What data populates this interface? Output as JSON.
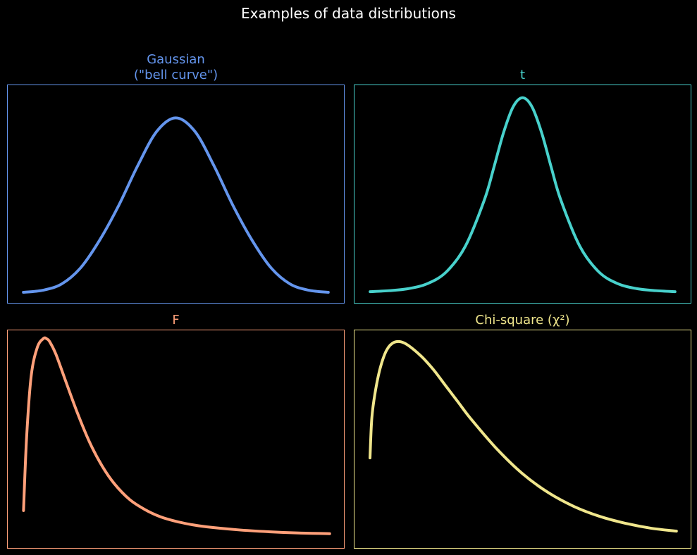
{
  "title": "Examples of data distributions",
  "chart_data": [
    {
      "type": "line",
      "title": "Gaussian\n(\"bell curve\")",
      "color": "#6495ED",
      "xlabel": "",
      "ylabel": "",
      "grid": false,
      "xlim": [
        -4.4,
        4.4
      ],
      "ylim": [
        -0.03,
        0.63
      ],
      "series": [
        {
          "x": [
            -4,
            -3.5,
            -3,
            -2.5,
            -2,
            -1.5,
            -1,
            -0.5,
            0,
            0.5,
            1,
            1.5,
            2,
            2.5,
            3,
            3.5,
            4
          ],
          "y": [
            0.002,
            0.008,
            0.027,
            0.076,
            0.16,
            0.265,
            0.386,
            0.49,
            0.531,
            0.49,
            0.386,
            0.265,
            0.16,
            0.076,
            0.027,
            0.008,
            0.002
          ]
        }
      ]
    },
    {
      "type": "line",
      "title": "t",
      "color": "#48D1CC",
      "xlabel": "",
      "ylabel": "",
      "grid": false,
      "xlim": [
        -4.4,
        4.4
      ],
      "ylim": [
        -0.03,
        0.63
      ],
      "series": [
        {
          "x": [
            -4,
            -3.5,
            -3,
            -2.5,
            -2,
            -1.5,
            -1,
            -0.75,
            -0.5,
            -0.25,
            0,
            0.25,
            0.5,
            0.75,
            1,
            1.5,
            2,
            2.5,
            3,
            3.5,
            4
          ],
          "y": [
            0.004,
            0.007,
            0.013,
            0.028,
            0.064,
            0.142,
            0.283,
            0.382,
            0.486,
            0.564,
            0.592,
            0.564,
            0.486,
            0.382,
            0.283,
            0.142,
            0.064,
            0.028,
            0.013,
            0.007,
            0.004
          ]
        }
      ]
    },
    {
      "type": "line",
      "title": "F",
      "color": "#FFA07A",
      "xlabel": "",
      "ylabel": "",
      "grid": false,
      "xlim": [
        -0.45,
        10.45
      ],
      "ylim": [
        -0.03,
        0.64
      ],
      "series": [
        {
          "x": [
            0.05,
            0.15,
            0.3,
            0.5,
            0.7,
            0.8,
            0.9,
            1.1,
            1.4,
            1.8,
            2.2,
            2.6,
            3,
            3.5,
            4,
            4.5,
            5,
            5.5,
            6,
            7,
            8,
            9,
            10
          ],
          "y": [
            0.085,
            0.31,
            0.5,
            0.588,
            0.615,
            0.614,
            0.605,
            0.567,
            0.489,
            0.386,
            0.295,
            0.223,
            0.168,
            0.119,
            0.088,
            0.066,
            0.052,
            0.042,
            0.035,
            0.026,
            0.02,
            0.016,
            0.014
          ]
        }
      ]
    },
    {
      "type": "line",
      "title": "Chi-square (χ²)",
      "color": "#F0E68C",
      "xlabel": "",
      "ylabel": "",
      "grid": false,
      "xlim": [
        -0.54,
        12.54
      ],
      "ylim": [
        -0.01,
        0.21
      ],
      "series": [
        {
          "x": [
            0.05,
            0.12,
            0.25,
            0.45,
            0.7,
            1,
            1.4,
            2,
            2.5,
            3,
            3.5,
            4,
            5,
            6,
            7,
            8,
            9,
            10,
            11,
            12
          ],
          "y": [
            0.081,
            0.121,
            0.147,
            0.172,
            0.19,
            0.198,
            0.197,
            0.185,
            0.171,
            0.154,
            0.137,
            0.12,
            0.09,
            0.065,
            0.046,
            0.032,
            0.022,
            0.015,
            0.01,
            0.007
          ]
        }
      ]
    }
  ]
}
